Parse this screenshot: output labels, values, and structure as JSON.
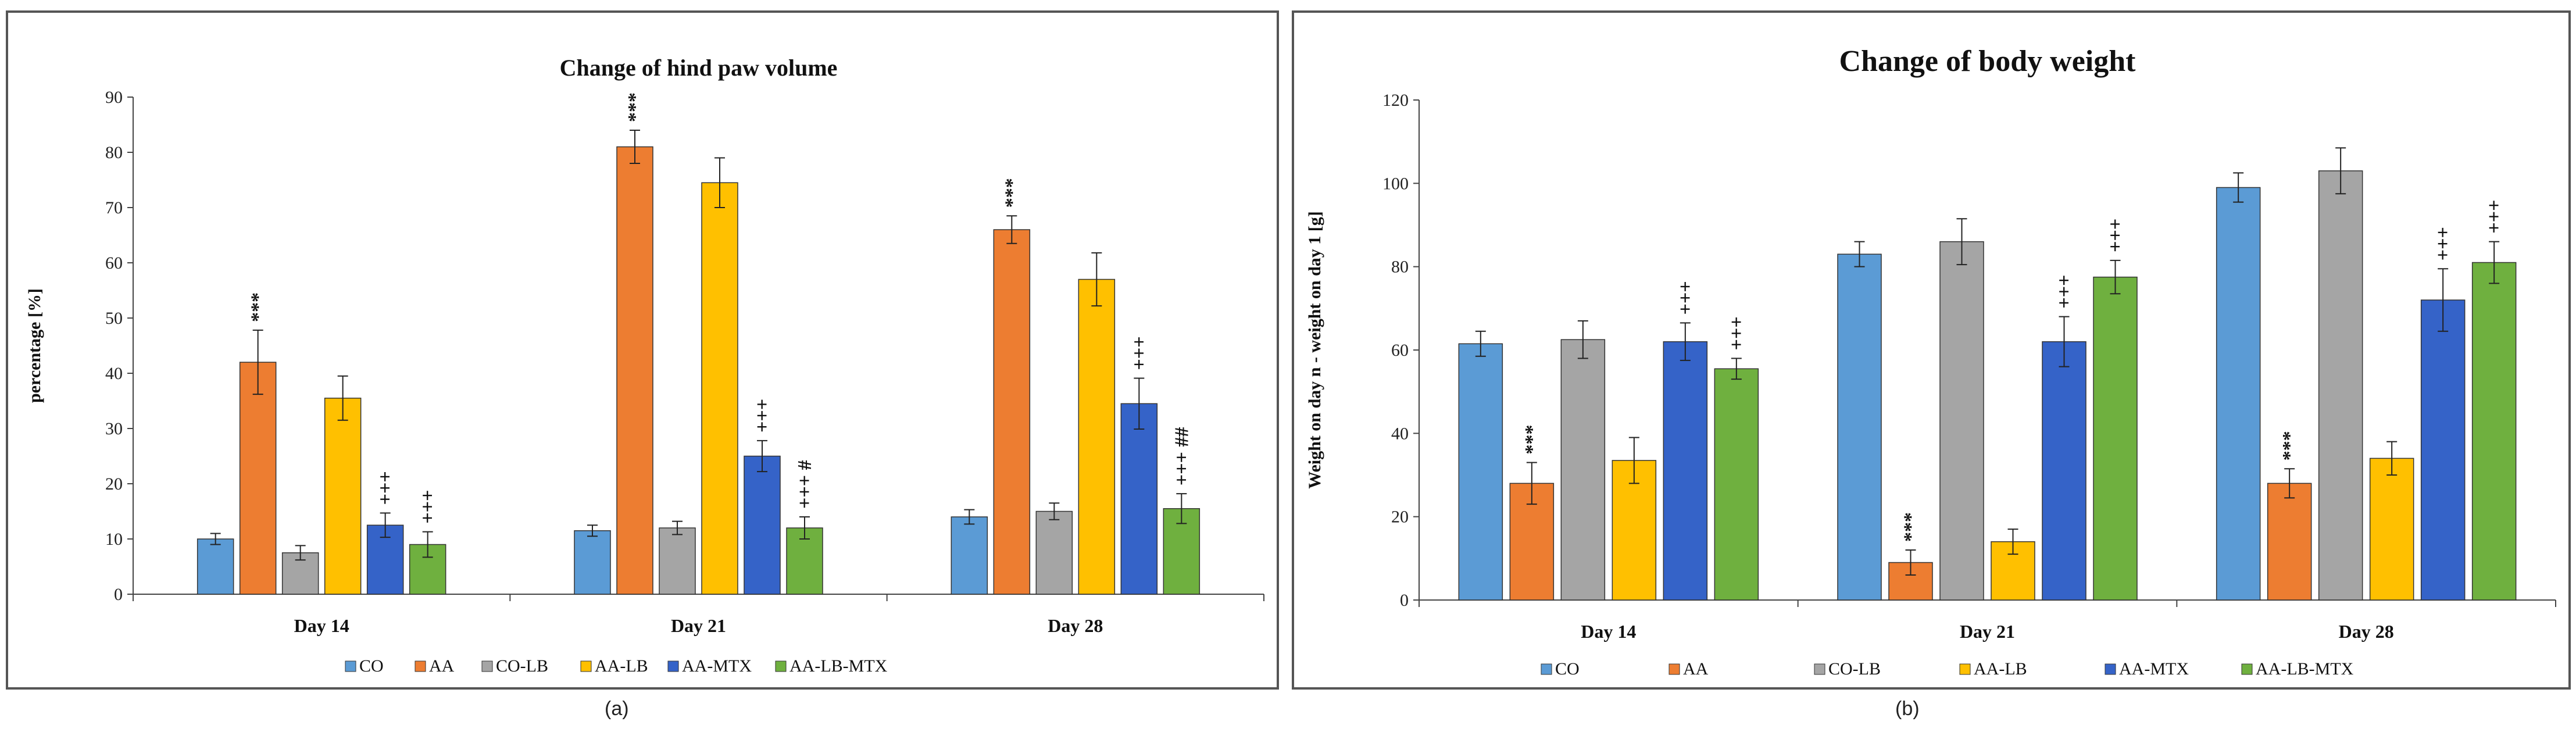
{
  "colors": {
    "CO": "#5b9bd5",
    "AA": "#ed7d31",
    "CO-LB": "#a5a5a5",
    "AA-LB": "#ffc000",
    "AA-MTX": "#3563c8",
    "AA-LB-MTX": "#6fb03f"
  },
  "captions": {
    "a": "(a)",
    "b": "(b)"
  },
  "chart_data": [
    {
      "id": "a",
      "type": "bar",
      "title": "Change of hind paw volume",
      "xlabel": "",
      "ylabel": "percentage [%]",
      "ylim": [
        0,
        90
      ],
      "yticks": [
        0,
        10,
        20,
        30,
        40,
        50,
        60,
        70,
        80,
        90
      ],
      "categories": [
        "Day 14",
        "Day 21",
        "Day 28"
      ],
      "legend": "bottom",
      "series": [
        {
          "name": "CO",
          "values": [
            10,
            11.5,
            14
          ],
          "errors": [
            1,
            1,
            1.3
          ],
          "annotations": [
            "",
            "",
            ""
          ]
        },
        {
          "name": "AA",
          "values": [
            42,
            81,
            66
          ],
          "errors": [
            5.8,
            3,
            2.5
          ],
          "annotations": [
            "***",
            "***",
            "***"
          ]
        },
        {
          "name": "CO-LB",
          "values": [
            7.5,
            12,
            15
          ],
          "errors": [
            1.3,
            1.2,
            1.5
          ],
          "annotations": [
            "",
            "",
            ""
          ]
        },
        {
          "name": "AA-LB",
          "values": [
            35.5,
            74.5,
            57
          ],
          "errors": [
            4,
            4.5,
            4.8
          ],
          "annotations": [
            "",
            "",
            ""
          ]
        },
        {
          "name": "AA-MTX",
          "values": [
            12.5,
            25,
            34.5
          ],
          "errors": [
            2.2,
            2.8,
            4.6
          ],
          "annotations": [
            "+++",
            "+++",
            "+++"
          ]
        },
        {
          "name": "AA-LB-MTX",
          "values": [
            9,
            12,
            15.5
          ],
          "errors": [
            2.3,
            2,
            2.7
          ],
          "annotations": [
            "+++",
            "+++ #",
            "+++ ##"
          ]
        }
      ]
    },
    {
      "id": "b",
      "type": "bar",
      "title": "Change of body weight",
      "xlabel": "",
      "ylabel": "Weight on day n - weight on day 1 [g]",
      "ylim": [
        0,
        120
      ],
      "yticks": [
        0,
        20,
        40,
        60,
        80,
        100,
        120
      ],
      "categories": [
        "Day 14",
        "Day 21",
        "Day 28"
      ],
      "legend": "bottom",
      "series": [
        {
          "name": "CO",
          "values": [
            61.5,
            83,
            99
          ],
          "errors": [
            3,
            3,
            3.5
          ],
          "annotations": [
            "",
            "",
            ""
          ]
        },
        {
          "name": "AA",
          "values": [
            28,
            9,
            28
          ],
          "errors": [
            5,
            3,
            3.5
          ],
          "annotations": [
            "***",
            "***",
            "***"
          ]
        },
        {
          "name": "CO-LB",
          "values": [
            62.5,
            86,
            103
          ],
          "errors": [
            4.5,
            5.5,
            5.5
          ],
          "annotations": [
            "",
            "",
            ""
          ]
        },
        {
          "name": "AA-LB",
          "values": [
            33.5,
            14,
            34
          ],
          "errors": [
            5.5,
            3,
            4
          ],
          "annotations": [
            "",
            "",
            ""
          ]
        },
        {
          "name": "AA-MTX",
          "values": [
            62,
            62,
            72
          ],
          "errors": [
            4.5,
            6,
            7.5
          ],
          "annotations": [
            "+++",
            "+++",
            "+++"
          ]
        },
        {
          "name": "AA-LB-MTX",
          "values": [
            55.5,
            77.5,
            81
          ],
          "errors": [
            2.5,
            4,
            5
          ],
          "annotations": [
            "+++",
            "+++",
            "+++"
          ]
        }
      ]
    }
  ]
}
